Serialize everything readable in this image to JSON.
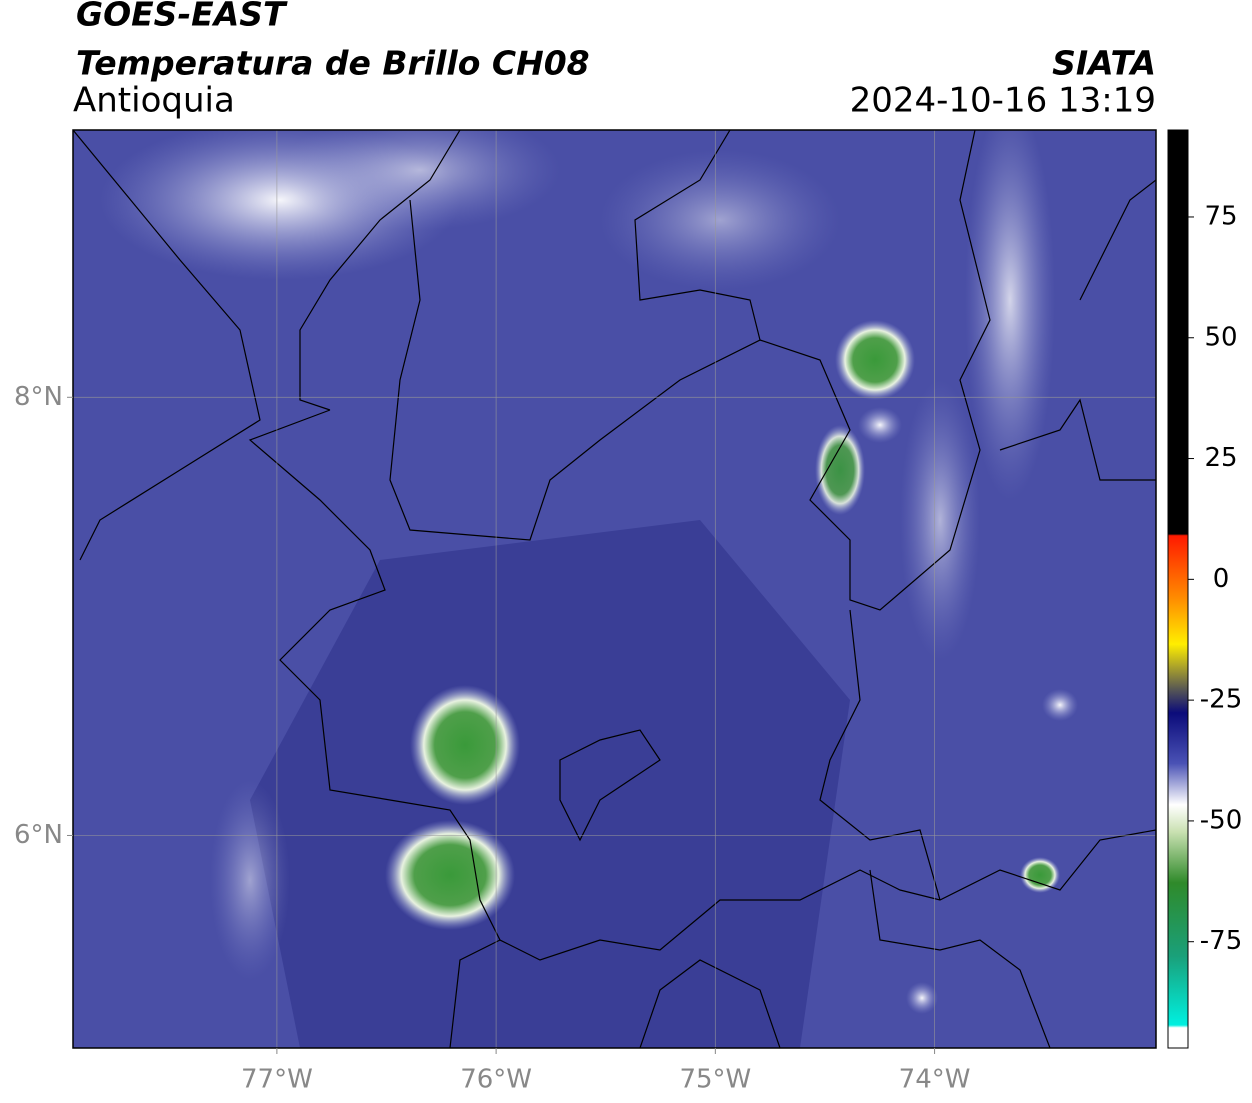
{
  "header": {
    "title": "GOES-EAST",
    "subtitle": "Temperatura de Brillo CH08",
    "region": "Antioquia",
    "source": "SIATA",
    "timestamp": "2024-10-16 13:19"
  },
  "map": {
    "xlim": [
      -77.93,
      -72.99
    ],
    "ylim": [
      5.03,
      9.22
    ],
    "xticks": [
      {
        "value": -77,
        "label": "77°W"
      },
      {
        "value": -76,
        "label": "76°W"
      },
      {
        "value": -75,
        "label": "75°W"
      },
      {
        "value": -74,
        "label": "74°W"
      }
    ],
    "yticks": [
      {
        "value": 8,
        "label": "8°N"
      },
      {
        "value": 6,
        "label": "6°N"
      }
    ],
    "grid": true
  },
  "colorbar": {
    "lim": [
      -97,
      93
    ],
    "ticks": [
      75,
      50,
      25,
      0,
      -25,
      -50,
      -75
    ]
  }
}
